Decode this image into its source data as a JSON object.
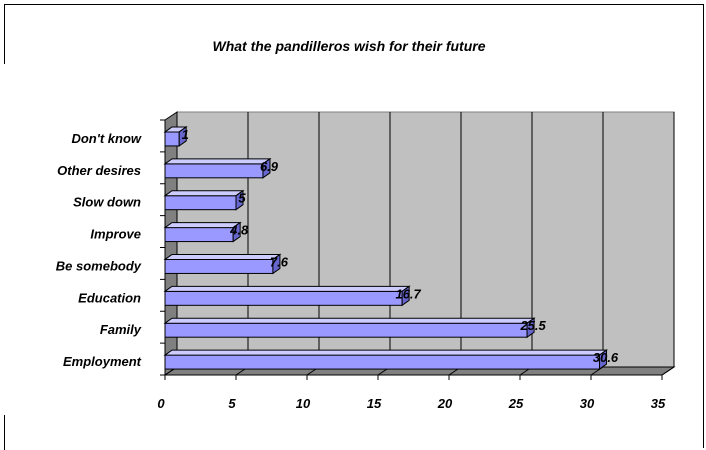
{
  "chart_data": {
    "type": "bar",
    "orientation": "horizontal",
    "title": "What the pandilleros wish for their future",
    "categories": [
      "Don't know",
      "Other desires",
      "Slow down",
      "Improve",
      "Be somebody",
      "Education",
      "Family",
      "Employment"
    ],
    "values": [
      1,
      6.9,
      5,
      4.8,
      7.6,
      16.7,
      25.5,
      30.6
    ],
    "data_labels": [
      "1",
      "6.9",
      "5",
      "4.8",
      "7.6",
      "16.7",
      "25.5",
      "30.6"
    ],
    "xlim": [
      0,
      35
    ],
    "xticks": [
      0,
      5,
      10,
      15,
      20,
      25,
      30,
      35
    ],
    "xlabel": "",
    "ylabel": "",
    "grid": true,
    "legend": "none",
    "colors": {
      "bar_front": "#9999ff",
      "bar_top": "#ccccff",
      "bar_side": "#6666cc",
      "wall": "#c0c0c0",
      "floor": "#808080"
    }
  }
}
